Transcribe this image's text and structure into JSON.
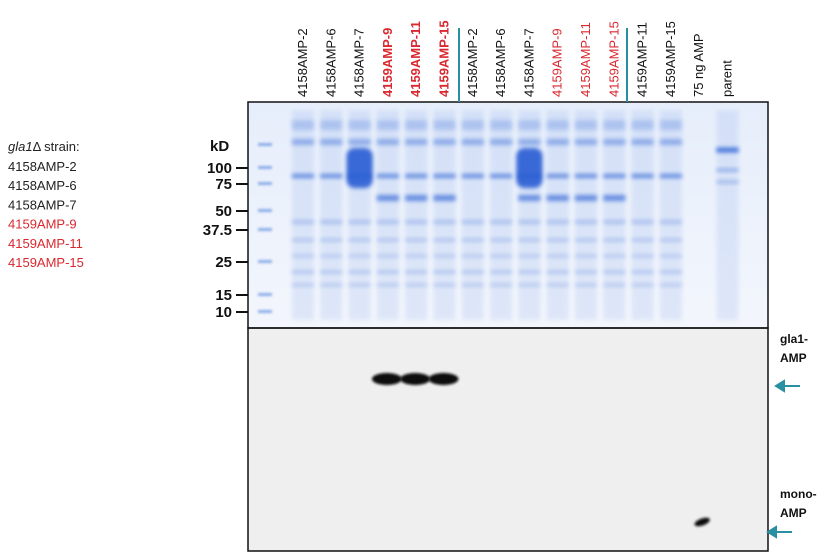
{
  "legend": {
    "title_italic": "gla1",
    "title_rest": "Δ strain:",
    "items": [
      {
        "label": "4158AMP-2",
        "color": "#222222"
      },
      {
        "label": "4158AMP-6",
        "color": "#222222"
      },
      {
        "label": "4158AMP-7",
        "color": "#222222"
      },
      {
        "label": "4159AMP-9",
        "color": "#d9282f"
      },
      {
        "label": "4159AMP-11",
        "color": "#d9282f"
      },
      {
        "label": "4159AMP-15",
        "color": "#d9282f"
      }
    ]
  },
  "lanes": [
    {
      "label": "4158AMP-2",
      "color": "#111111",
      "bold": false
    },
    {
      "label": "4158AMP-6",
      "color": "#111111",
      "bold": false
    },
    {
      "label": "4158AMP-7",
      "color": "#111111",
      "bold": false
    },
    {
      "label": "4159AMP-9",
      "color": "#d9282f",
      "bold": true
    },
    {
      "label": "4159AMP-11",
      "color": "#d9282f",
      "bold": true
    },
    {
      "label": "4159AMP-15",
      "color": "#d9282f",
      "bold": true
    },
    {
      "label": "4158AMP-2",
      "color": "#111111",
      "bold": false
    },
    {
      "label": "4158AMP-6",
      "color": "#111111",
      "bold": false
    },
    {
      "label": "4158AMP-7",
      "color": "#111111",
      "bold": false
    },
    {
      "label": "4159AMP-9",
      "color": "#d9282f",
      "bold": false
    },
    {
      "label": "4159AMP-11",
      "color": "#d9282f",
      "bold": false
    },
    {
      "label": "4159AMP-15",
      "color": "#d9282f",
      "bold": false
    },
    {
      "label": "4159AMP-11",
      "color": "#111111",
      "bold": false
    },
    {
      "label": "4159AMP-15",
      "color": "#111111",
      "bold": false
    },
    {
      "label": "75 ng AMP",
      "color": "#111111",
      "bold": false
    },
    {
      "label": "parent",
      "color": "#111111",
      "bold": false
    }
  ],
  "marker_unit": "kD",
  "markers": [
    "100",
    "75",
    "50",
    "37.5",
    "25",
    "15",
    "10"
  ],
  "side_labels": {
    "top": [
      "gla1-",
      "AMP"
    ],
    "bottom": [
      "mono-",
      "AMP"
    ]
  }
}
